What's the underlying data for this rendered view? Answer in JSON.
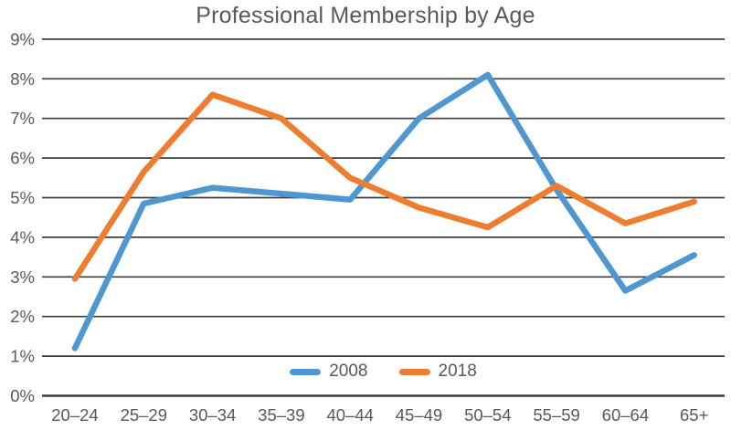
{
  "chart_data": {
    "type": "line",
    "title": "Professional Membership by Age",
    "categories": [
      "20–24",
      "25–29",
      "30–34",
      "35–39",
      "40–44",
      "45–49",
      "50–54",
      "55–59",
      "60–64",
      "65+"
    ],
    "series": [
      {
        "name": "2008",
        "color": "#4E97D1",
        "values": [
          1.2,
          4.85,
          5.25,
          5.1,
          4.95,
          7.0,
          8.1,
          5.2,
          2.65,
          3.55
        ]
      },
      {
        "name": "2018",
        "color": "#ED7D31",
        "values": [
          2.95,
          5.65,
          7.6,
          7.0,
          5.5,
          4.75,
          4.25,
          5.3,
          4.35,
          4.9
        ]
      }
    ],
    "ylim": [
      0,
      9
    ],
    "ytick_labels": [
      "0%",
      "1%",
      "2%",
      "3%",
      "4%",
      "5%",
      "6%",
      "7%",
      "8%",
      "9%"
    ],
    "grid": "horizontal",
    "legend_position": "bottom-center-inside",
    "colors": {
      "text": "#595959",
      "gridline": "#3d3d3d"
    }
  }
}
